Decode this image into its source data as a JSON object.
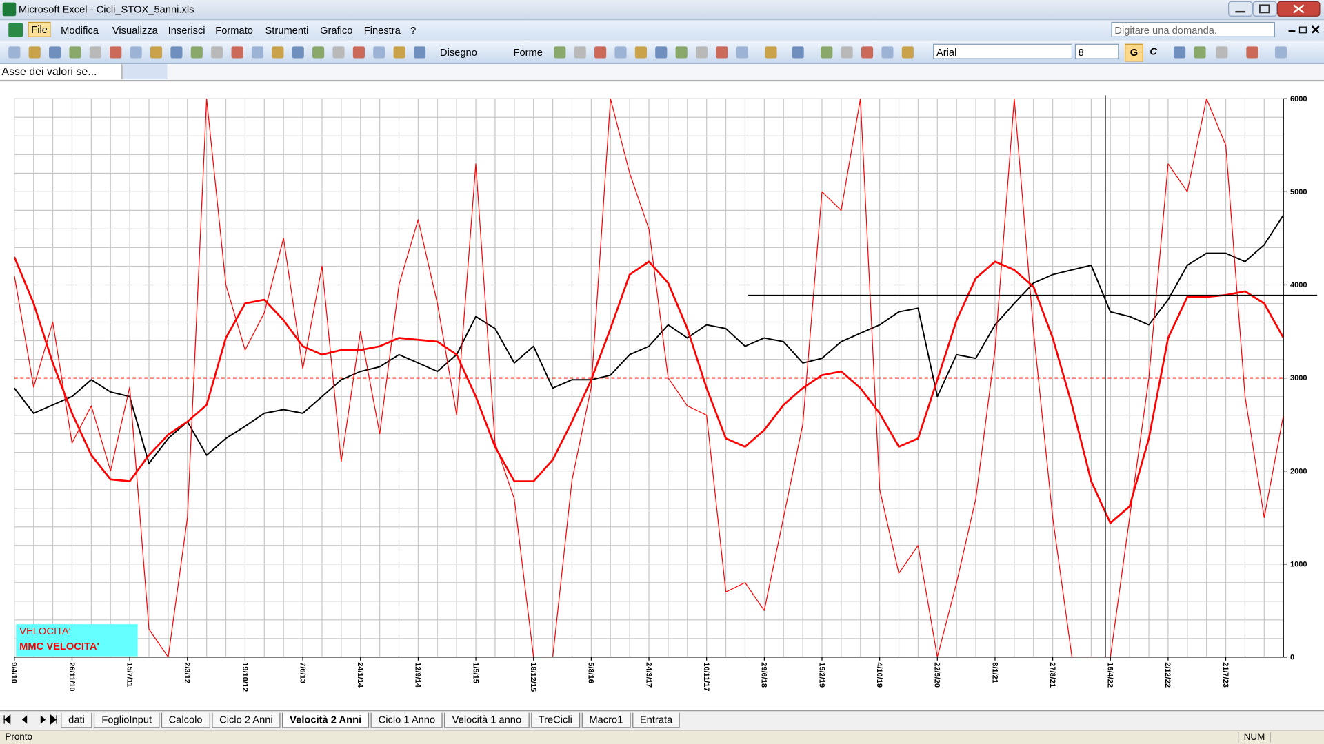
{
  "window": {
    "title": "Microsoft Excel - Cicli_STOX_5anni.xls"
  },
  "menu": [
    "File",
    "Modifica",
    "Visualizza",
    "Inserisci",
    "Formato",
    "Strumenti",
    "Grafico",
    "Finestra",
    "?"
  ],
  "help_box": "Digitare una domanda.",
  "toolbar": {
    "drawing": "Disegno",
    "shapes": "Forme",
    "font": "Arial",
    "font_size": "8",
    "bold": "G",
    "italic": "C"
  },
  "name_box": "Asse dei valori se...",
  "sheet_tabs": [
    "dati",
    "FoglioInput",
    "Calcolo",
    "Ciclo 2 Anni",
    "Velocità 2 Anni",
    "Ciclo 1 Anno",
    "Velocità 1 anno",
    "TreCicli",
    "Macro1",
    "Entrata"
  ],
  "active_tab": 4,
  "status": {
    "left": "Pronto",
    "num": "NUM"
  },
  "chart_data": {
    "type": "line",
    "x": [
      "9/4/10",
      null,
      null,
      "26/11/10",
      null,
      null,
      "15/7/11",
      null,
      null,
      "2/3/12",
      null,
      null,
      "19/10/12",
      null,
      null,
      "7/6/13",
      null,
      null,
      "24/1/14",
      null,
      null,
      "12/9/14",
      null,
      null,
      "1/5/15",
      null,
      null,
      "18/12/15",
      null,
      null,
      "5/8/16",
      null,
      null,
      "24/3/17",
      null,
      null,
      "10/11/17",
      null,
      null,
      "29/6/18",
      null,
      null,
      "15/2/19",
      null,
      null,
      "4/10/19",
      null,
      null,
      "22/5/20",
      null,
      null,
      "8/1/21",
      null,
      null,
      "27/8/21",
      null,
      null,
      "15/4/22",
      null,
      null,
      "2/12/22",
      null,
      null,
      "21/7/23",
      null,
      null,
      null
    ],
    "series": [
      {
        "color": "#000000",
        "line_width": 1.6,
        "values": [
          2890,
          2620,
          2710,
          2800,
          2980,
          2850,
          2800,
          2080,
          2350,
          2530,
          2170,
          2350,
          2480,
          2620,
          2660,
          2620,
          2800,
          2980,
          3070,
          3120,
          3250,
          3160,
          3070,
          3250,
          3660,
          3530,
          3160,
          3340,
          2890,
          2980,
          2980,
          3030,
          3250,
          3340,
          3570,
          3430,
          3570,
          3530,
          3340,
          3430,
          3390,
          3160,
          3210,
          3390,
          3480,
          3570,
          3710,
          3750,
          2800,
          3250,
          3210,
          3570,
          3800,
          4020,
          4110,
          4160,
          4210,
          3710,
          3660,
          3570,
          3840,
          4210,
          4340,
          4340,
          4250,
          4430,
          4750
        ]
      },
      {
        "name": "VELOCITA'",
        "color": "#ff0000",
        "line_width": 1,
        "values": [
          4100,
          2900,
          3600,
          2300,
          2700,
          2000,
          2900,
          300,
          0,
          1500,
          6000,
          4000,
          3300,
          3700,
          4500,
          3100,
          4200,
          2100,
          3500,
          2400,
          4000,
          4700,
          3800,
          2600,
          5300,
          2300,
          1700,
          0,
          0,
          1900,
          2900,
          6000,
          5200,
          4600,
          3000,
          2700,
          2600,
          700,
          800,
          500,
          1500,
          2500,
          5000,
          4800,
          6000,
          1800,
          900,
          1200,
          0,
          800,
          1700,
          3300,
          6000,
          3500,
          1500,
          0,
          0,
          0,
          1500,
          3000,
          5300,
          5000,
          6000,
          5500,
          2800,
          1500,
          2600
        ]
      },
      {
        "name": "MMC VELOCITA'",
        "color": "#ff0000",
        "line_width": 2.2,
        "values": [
          4300,
          3800,
          3160,
          2620,
          2170,
          1910,
          1890,
          2170,
          2390,
          2530,
          2710,
          3430,
          3800,
          3840,
          3620,
          3340,
          3250,
          3300,
          3300,
          3340,
          3430,
          3410,
          3390,
          3250,
          2800,
          2260,
          1890,
          1890,
          2120,
          2530,
          2980,
          3530,
          4110,
          4250,
          4020,
          3530,
          2890,
          2350,
          2260,
          2440,
          2710,
          2890,
          3030,
          3070,
          2890,
          2620,
          2260,
          2350,
          2980,
          3620,
          4070,
          4250,
          4160,
          3980,
          3430,
          2710,
          1890,
          1440,
          1620,
          2350,
          3430,
          3870,
          3870,
          3890,
          3930,
          3800,
          3430
        ]
      }
    ],
    "ylim": [
      0,
      6000
    ],
    "yticks": [
      0,
      1000,
      2000,
      3000,
      4000,
      5000,
      6000
    ],
    "ygrid": [
      0,
      200,
      400,
      600,
      800,
      1000,
      1200,
      1400,
      1600,
      1800,
      2000,
      2200,
      2400,
      2600,
      2800,
      3000,
      3200,
      3400,
      3600,
      3800,
      4000,
      4200,
      4400,
      4600,
      4800,
      5000,
      5200,
      5400,
      5600,
      5800,
      6000
    ],
    "y_axis_side": "right",
    "grid": true,
    "reference_line": {
      "value": 3000,
      "color": "#ff0000",
      "style": "dashed"
    },
    "legend": "bottom-left"
  }
}
